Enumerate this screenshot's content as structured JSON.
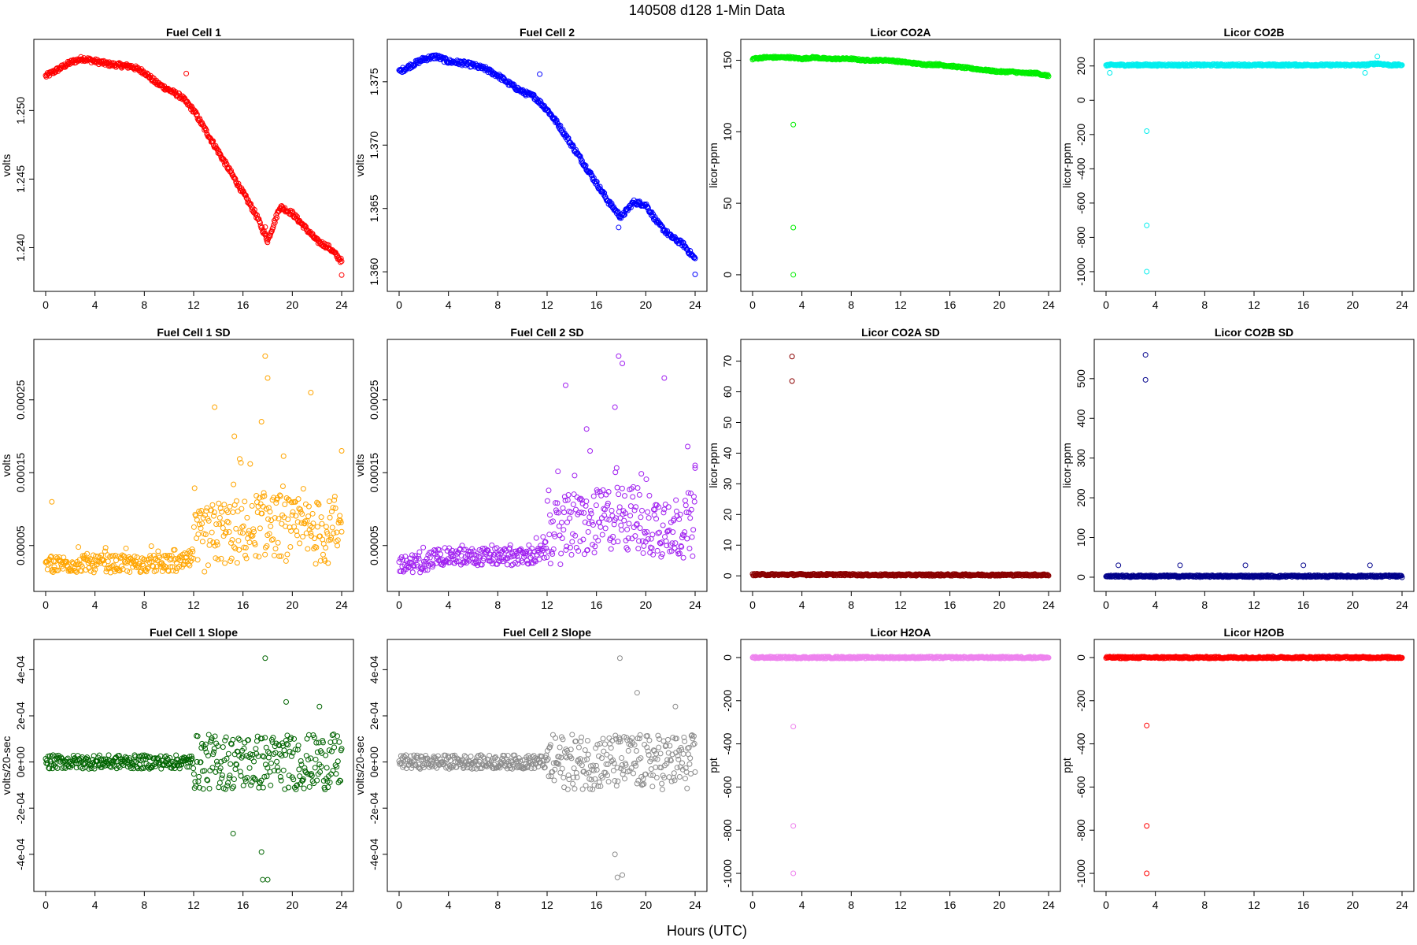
{
  "figure": {
    "title": "140508   d128   1-Min Data",
    "xlabel": "Hours (UTC)"
  },
  "chart_data": [
    {
      "type": "scatter",
      "title": "Fuel Cell 1",
      "xlabel": "",
      "ylabel": "volts",
      "xlim": [
        0,
        24
      ],
      "ylim": [
        1.2375,
        1.2545
      ],
      "yticks": [
        "1.240",
        "1.245",
        "1.250"
      ],
      "ytick_values": [
        1.24,
        1.245,
        1.25
      ],
      "color": "#ff0000",
      "x": [
        0,
        1,
        2,
        3,
        4,
        5,
        6,
        7,
        8,
        9,
        10,
        11,
        12,
        13,
        14,
        15,
        16,
        17,
        18,
        19,
        20,
        21,
        22,
        23,
        24
      ],
      "y": [
        1.2525,
        1.253,
        1.2535,
        1.2538,
        1.2536,
        1.2534,
        1.2533,
        1.2532,
        1.2528,
        1.252,
        1.2515,
        1.251,
        1.25,
        1.2485,
        1.247,
        1.2455,
        1.244,
        1.2425,
        1.2405,
        1.243,
        1.2425,
        1.2415,
        1.2405,
        1.24,
        1.239
      ],
      "outliers": [
        {
          "x": 11.4,
          "y": 1.2527
        },
        {
          "x": 17.8,
          "y": 1.2415
        },
        {
          "x": 24,
          "y": 1.238
        }
      ]
    },
    {
      "type": "scatter",
      "title": "Fuel Cell 2",
      "xlabel": "",
      "ylabel": "volts",
      "xlim": [
        0,
        24
      ],
      "ylim": [
        1.3592,
        1.3776
      ],
      "yticks": [
        "1.360",
        "1.365",
        "1.370",
        "1.375"
      ],
      "ytick_values": [
        1.36,
        1.365,
        1.37,
        1.375
      ],
      "color": "#0000ff",
      "x": [
        0,
        1,
        2,
        3,
        4,
        5,
        6,
        7,
        8,
        9,
        10,
        11,
        12,
        13,
        14,
        15,
        16,
        17,
        18,
        19,
        20,
        21,
        22,
        23,
        24
      ],
      "y": [
        1.3758,
        1.3763,
        1.3768,
        1.377,
        1.3766,
        1.3765,
        1.3763,
        1.376,
        1.3755,
        1.3748,
        1.3742,
        1.3738,
        1.3728,
        1.3715,
        1.37,
        1.3685,
        1.367,
        1.3655,
        1.3643,
        1.3655,
        1.3653,
        1.3638,
        1.3628,
        1.3622,
        1.361
      ],
      "outliers": [
        {
          "x": 11.4,
          "y": 1.3756
        },
        {
          "x": 17.8,
          "y": 1.3635
        },
        {
          "x": 24,
          "y": 1.3598
        }
      ]
    },
    {
      "type": "scatter",
      "title": "Licor CO2A",
      "xlabel": "",
      "ylabel": "licor-ppm",
      "xlim": [
        0,
        24
      ],
      "ylim": [
        -5,
        158
      ],
      "yticks": [
        "0",
        "50",
        "100",
        "150"
      ],
      "ytick_values": [
        0,
        50,
        100,
        150
      ],
      "color": "#00ee00",
      "x": [
        0,
        1,
        2,
        3,
        4,
        5,
        6,
        7,
        8,
        9,
        10,
        11,
        12,
        13,
        14,
        15,
        16,
        17,
        18,
        19,
        20,
        21,
        22,
        23,
        24
      ],
      "y": [
        151,
        152,
        152,
        152,
        151,
        152,
        151,
        151,
        151,
        150,
        150,
        150,
        149,
        148,
        147,
        147,
        146,
        145,
        144,
        143,
        142,
        142,
        141,
        141,
        139
      ],
      "outliers": [
        {
          "x": 3.3,
          "y": 105
        },
        {
          "x": 3.3,
          "y": 33
        },
        {
          "x": 3.3,
          "y": 0
        }
      ]
    },
    {
      "type": "scatter",
      "title": "Licor CO2B",
      "xlabel": "",
      "ylabel": "licor-ppm",
      "xlim": [
        0,
        24
      ],
      "ylim": [
        -1060,
        300
      ],
      "yticks": [
        "-1000",
        "-800",
        "-600",
        "-400",
        "-200",
        "0",
        "200"
      ],
      "ytick_values": [
        -1000,
        -800,
        -600,
        -400,
        -200,
        0,
        200
      ],
      "color": "#00eeee",
      "x": [
        0,
        1,
        2,
        3,
        4,
        5,
        6,
        7,
        8,
        9,
        10,
        11,
        12,
        13,
        14,
        15,
        16,
        17,
        18,
        19,
        20,
        21,
        22,
        23,
        24
      ],
      "y": [
        205,
        206,
        205,
        206,
        205,
        206,
        205,
        206,
        205,
        206,
        205,
        206,
        205,
        206,
        205,
        206,
        205,
        206,
        205,
        206,
        205,
        206,
        215,
        205,
        206
      ],
      "outliers": [
        {
          "x": 3.3,
          "y": -180
        },
        {
          "x": 3.3,
          "y": -730
        },
        {
          "x": 3.3,
          "y": -1000
        },
        {
          "x": 22,
          "y": 255
        },
        {
          "x": 21,
          "y": 160
        },
        {
          "x": 0.3,
          "y": 160
        }
      ]
    },
    {
      "type": "scatter",
      "title": "Fuel Cell 1 SD",
      "xlabel": "",
      "ylabel": "volts",
      "xlim": [
        0,
        24
      ],
      "ylim": [
        0,
        0.00032
      ],
      "yticks": [
        "0.00005",
        "0.00015",
        "0.00025"
      ],
      "ytick_values": [
        5e-05,
        0.00015,
        0.00025
      ],
      "color": "#ffa500",
      "x": [
        0,
        1,
        2,
        3,
        4,
        5,
        6,
        7,
        8,
        9,
        10,
        11,
        12,
        13,
        14,
        15,
        16,
        17,
        18,
        19,
        20,
        21,
        22,
        23,
        24
      ],
      "y": [
        2e-05,
        2e-05,
        2e-05,
        2e-05,
        2e-05,
        2e-05,
        2e-05,
        2e-05,
        2e-05,
        2e-05,
        2e-05,
        2e-05,
        3e-05,
        4e-05,
        5e-05,
        5e-05,
        5e-05,
        6e-05,
        6e-05,
        6e-05,
        5e-05,
        5e-05,
        5e-05,
        5e-05,
        5e-05
      ],
      "outliers": [
        {
          "x": 0.5,
          "y": 0.00011
        },
        {
          "x": 13.7,
          "y": 0.00024
        },
        {
          "x": 15.3,
          "y": 0.0002
        },
        {
          "x": 17.5,
          "y": 0.00022
        },
        {
          "x": 17.8,
          "y": 0.00031
        },
        {
          "x": 18,
          "y": 0.00028
        },
        {
          "x": 21.5,
          "y": 0.00026
        },
        {
          "x": 24,
          "y": 0.00018
        }
      ]
    },
    {
      "type": "scatter",
      "title": "Fuel Cell 2 SD",
      "xlabel": "",
      "ylabel": "volts",
      "xlim": [
        0,
        24
      ],
      "ylim": [
        0,
        0.00032
      ],
      "yticks": [
        "0.00005",
        "0.00015",
        "0.00025"
      ],
      "ytick_values": [
        5e-05,
        0.00015,
        0.00025
      ],
      "color": "#a020f0",
      "x": [
        0,
        1,
        2,
        3,
        4,
        5,
        6,
        7,
        8,
        9,
        10,
        11,
        12,
        13,
        14,
        15,
        16,
        17,
        18,
        19,
        20,
        21,
        22,
        23,
        24
      ],
      "y": [
        2e-05,
        2e-05,
        2e-05,
        3e-05,
        3e-05,
        3e-05,
        3e-05,
        3e-05,
        3e-05,
        3e-05,
        3e-05,
        3e-05,
        4e-05,
        5e-05,
        6e-05,
        6e-05,
        6e-05,
        7e-05,
        7e-05,
        7e-05,
        6e-05,
        6e-05,
        6e-05,
        6e-05,
        6e-05
      ],
      "outliers": [
        {
          "x": 13.5,
          "y": 0.00027
        },
        {
          "x": 15.2,
          "y": 0.00021
        },
        {
          "x": 17.5,
          "y": 0.00024
        },
        {
          "x": 17.8,
          "y": 0.00031
        },
        {
          "x": 18.1,
          "y": 0.0003
        },
        {
          "x": 21.5,
          "y": 0.00028
        },
        {
          "x": 24,
          "y": 0.00016
        }
      ]
    },
    {
      "type": "scatter",
      "title": "Licor CO2A SD",
      "xlabel": "",
      "ylabel": "licor-ppm",
      "xlim": [
        0,
        24
      ],
      "ylim": [
        -2,
        74
      ],
      "yticks": [
        "0",
        "10",
        "20",
        "30",
        "40",
        "50",
        "60",
        "70"
      ],
      "ytick_values": [
        0,
        10,
        20,
        30,
        40,
        50,
        60,
        70
      ],
      "color": "#8b0000",
      "x": [
        0,
        1,
        2,
        3,
        4,
        5,
        6,
        7,
        8,
        9,
        10,
        11,
        12,
        13,
        14,
        15,
        16,
        17,
        18,
        19,
        20,
        21,
        22,
        23,
        24
      ],
      "y": [
        0.4,
        0.4,
        0.4,
        0.4,
        0.4,
        0.4,
        0.4,
        0.4,
        0.4,
        0.3,
        0.3,
        0.3,
        0.3,
        0.3,
        0.3,
        0.3,
        0.3,
        0.3,
        0.3,
        0.3,
        0.3,
        0.3,
        0.3,
        0.3,
        0.3
      ],
      "outliers": [
        {
          "x": 3.2,
          "y": 71.5
        },
        {
          "x": 3.2,
          "y": 63.5
        }
      ]
    },
    {
      "type": "scatter",
      "title": "Licor CO2B SD",
      "xlabel": "",
      "ylabel": "licor-ppm",
      "xlim": [
        0,
        24
      ],
      "ylim": [
        -12,
        575
      ],
      "yticks": [
        "0",
        "100",
        "200",
        "300",
        "400",
        "500"
      ],
      "ytick_values": [
        0,
        100,
        200,
        300,
        400,
        500
      ],
      "color": "#00008b",
      "x": [
        0,
        1,
        2,
        3,
        4,
        5,
        6,
        7,
        8,
        9,
        10,
        11,
        12,
        13,
        14,
        15,
        16,
        17,
        18,
        19,
        20,
        21,
        22,
        23,
        24
      ],
      "y": [
        2,
        3,
        2,
        3,
        2,
        3,
        2,
        3,
        2,
        3,
        2,
        3,
        2,
        3,
        2,
        3,
        2,
        3,
        2,
        3,
        2,
        3,
        2,
        3,
        2
      ],
      "outliers": [
        {
          "x": 3.2,
          "y": 560
        },
        {
          "x": 3.2,
          "y": 497
        },
        {
          "x": 1,
          "y": 30
        },
        {
          "x": 6,
          "y": 30
        },
        {
          "x": 11.3,
          "y": 30
        },
        {
          "x": 16,
          "y": 30
        },
        {
          "x": 21.4,
          "y": 30
        }
      ]
    },
    {
      "type": "scatter",
      "title": "Fuel Cell 1 Slope",
      "xlabel": "",
      "ylabel": "volts/20-sec",
      "xlim": [
        0,
        24
      ],
      "ylim": [
        -0.00052,
        0.00049
      ],
      "yticks": [
        "-4e-04",
        "-2e-04",
        "0e+00",
        "2e-04",
        "4e-04"
      ],
      "ytick_values": [
        -0.0004,
        -0.0002,
        0,
        0.0002,
        0.0004
      ],
      "color": "#006400",
      "x": [
        0,
        1,
        2,
        3,
        4,
        5,
        6,
        7,
        8,
        9,
        10,
        11,
        12,
        13,
        14,
        15,
        16,
        17,
        18,
        19,
        20,
        21,
        22,
        23,
        24
      ],
      "y": [
        0,
        0,
        0,
        0,
        0,
        0,
        0,
        0,
        0,
        0,
        0,
        0,
        0,
        0,
        0,
        0,
        0,
        0,
        0,
        0,
        0,
        0,
        0,
        0,
        0
      ],
      "outliers": [
        {
          "x": 17.8,
          "y": 0.00045
        },
        {
          "x": 17.5,
          "y": -0.00039
        },
        {
          "x": 17.6,
          "y": -0.00051
        },
        {
          "x": 18,
          "y": -0.00051
        },
        {
          "x": 15.2,
          "y": -0.00031
        },
        {
          "x": 19.5,
          "y": 0.00026
        },
        {
          "x": 22.2,
          "y": 0.00024
        }
      ]
    },
    {
      "type": "scatter",
      "title": "Fuel Cell 2 Slope",
      "xlabel": "",
      "ylabel": "volts/20-sec",
      "xlim": [
        0,
        24
      ],
      "ylim": [
        -0.00052,
        0.00049
      ],
      "yticks": [
        "-4e-04",
        "-2e-04",
        "0e+00",
        "2e-04",
        "4e-04"
      ],
      "ytick_values": [
        -0.0004,
        -0.0002,
        0,
        0.0002,
        0.0004
      ],
      "color": "#8c8c8c",
      "x": [
        0,
        1,
        2,
        3,
        4,
        5,
        6,
        7,
        8,
        9,
        10,
        11,
        12,
        13,
        14,
        15,
        16,
        17,
        18,
        19,
        20,
        21,
        22,
        23,
        24
      ],
      "y": [
        0,
        0,
        0,
        0,
        0,
        0,
        0,
        0,
        0,
        0,
        0,
        0,
        0,
        0,
        0,
        0,
        0,
        0,
        0,
        0,
        0,
        0,
        0,
        0,
        0
      ],
      "outliers": [
        {
          "x": 17.9,
          "y": 0.00045
        },
        {
          "x": 17.5,
          "y": -0.0004
        },
        {
          "x": 17.7,
          "y": -0.0005
        },
        {
          "x": 18.1,
          "y": -0.00049
        },
        {
          "x": 19.3,
          "y": 0.0003
        },
        {
          "x": 22.4,
          "y": 0.00024
        }
      ]
    },
    {
      "type": "scatter",
      "title": "Licor H2OA",
      "xlabel": "",
      "ylabel": "ppt",
      "xlim": [
        0,
        24
      ],
      "ylim": [
        -1040,
        40
      ],
      "yticks": [
        "-1000",
        "-800",
        "-600",
        "-400",
        "-200",
        "0"
      ],
      "ytick_values": [
        -1000,
        -800,
        -600,
        -400,
        -200,
        0
      ],
      "color": "#ee82ee",
      "x": [
        0,
        1,
        2,
        3,
        4,
        5,
        6,
        7,
        8,
        9,
        10,
        11,
        12,
        13,
        14,
        15,
        16,
        17,
        18,
        19,
        20,
        21,
        22,
        23,
        24
      ],
      "y": [
        0,
        0,
        0,
        0,
        0,
        0,
        0,
        0,
        0,
        0,
        0,
        0,
        0,
        0,
        0,
        0,
        0,
        0,
        0,
        0,
        0,
        0,
        0,
        0,
        0
      ],
      "outliers": [
        {
          "x": 3.3,
          "y": -320
        },
        {
          "x": 3.3,
          "y": -780
        },
        {
          "x": 3.3,
          "y": -1000
        }
      ]
    },
    {
      "type": "scatter",
      "title": "Licor H2OB",
      "xlabel": "",
      "ylabel": "ppt",
      "xlim": [
        0,
        24
      ],
      "ylim": [
        -1040,
        40
      ],
      "yticks": [
        "-1000",
        "-800",
        "-600",
        "-400",
        "-200",
        "0"
      ],
      "ytick_values": [
        -1000,
        -800,
        -600,
        -400,
        -200,
        0
      ],
      "color": "#ff0000",
      "x": [
        0,
        1,
        2,
        3,
        4,
        5,
        6,
        7,
        8,
        9,
        10,
        11,
        12,
        13,
        14,
        15,
        16,
        17,
        18,
        19,
        20,
        21,
        22,
        23,
        24
      ],
      "y": [
        0,
        0,
        0,
        0,
        0,
        0,
        0,
        0,
        0,
        0,
        0,
        0,
        0,
        0,
        0,
        0,
        0,
        0,
        0,
        0,
        0,
        0,
        0,
        0,
        0
      ],
      "outliers": [
        {
          "x": 3.3,
          "y": -315
        },
        {
          "x": 3.3,
          "y": -780
        },
        {
          "x": 3.3,
          "y": -1000
        }
      ]
    }
  ],
  "xticks": [
    "0",
    "4",
    "8",
    "12",
    "16",
    "20",
    "24"
  ],
  "xtick_values": [
    0,
    4,
    8,
    12,
    16,
    20,
    24
  ]
}
